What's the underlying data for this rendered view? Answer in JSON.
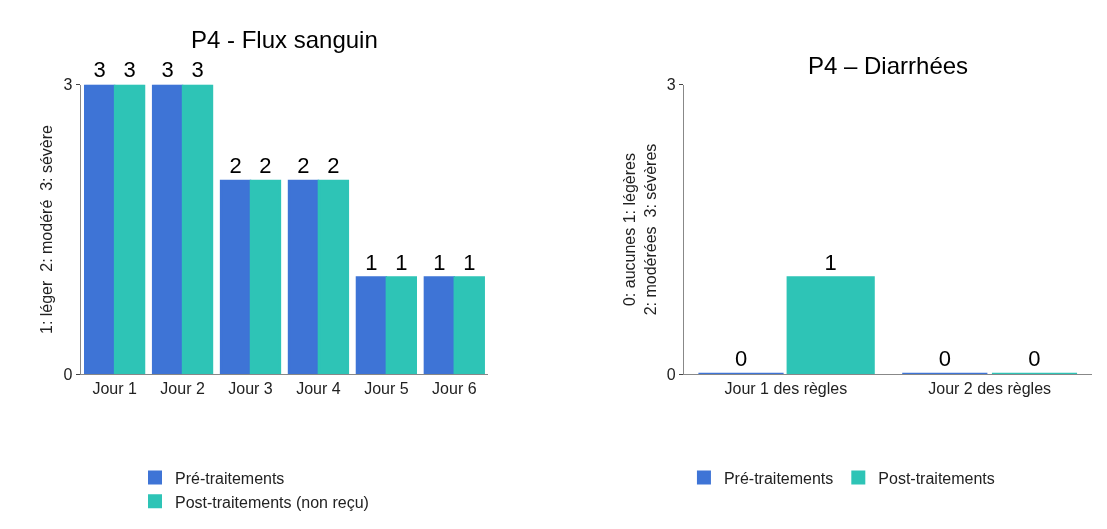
{
  "chart_data": [
    {
      "type": "bar",
      "title": "P4 - Flux sanguin",
      "ylabel": "1: léger  2: modéré  3: sévère",
      "categories": [
        "Jour 1",
        "Jour 2",
        "Jour 3",
        "Jour 4",
        "Jour 5",
        "Jour 6"
      ],
      "series": [
        {
          "name": "Pré-traitements",
          "color": "#3e74d6",
          "values": [
            3,
            3,
            2,
            2,
            1,
            1
          ]
        },
        {
          "name": "Post-traitements (non reçu)",
          "color": "#2ec4b6",
          "values": [
            3,
            3,
            2,
            2,
            1,
            1
          ]
        }
      ],
      "ylim": [
        0,
        3
      ],
      "yticks": [
        0,
        3
      ],
      "data_labels": true,
      "legend": "bottom"
    },
    {
      "type": "bar",
      "title": "P4 – Diarrhées",
      "ylabel": "0: aucunes 1: légères\n2: modérées  3: sévères",
      "categories": [
        "Jour 1 des règles",
        "Jour 2 des règles"
      ],
      "series": [
        {
          "name": "Pré-traitements",
          "color": "#3e74d6",
          "values": [
            0,
            0
          ]
        },
        {
          "name": "Post-traitements",
          "color": "#2ec4b6",
          "values": [
            1,
            0
          ]
        }
      ],
      "ylim": [
        0,
        3
      ],
      "yticks": [
        0,
        3
      ],
      "data_labels": true,
      "legend": "bottom"
    }
  ]
}
